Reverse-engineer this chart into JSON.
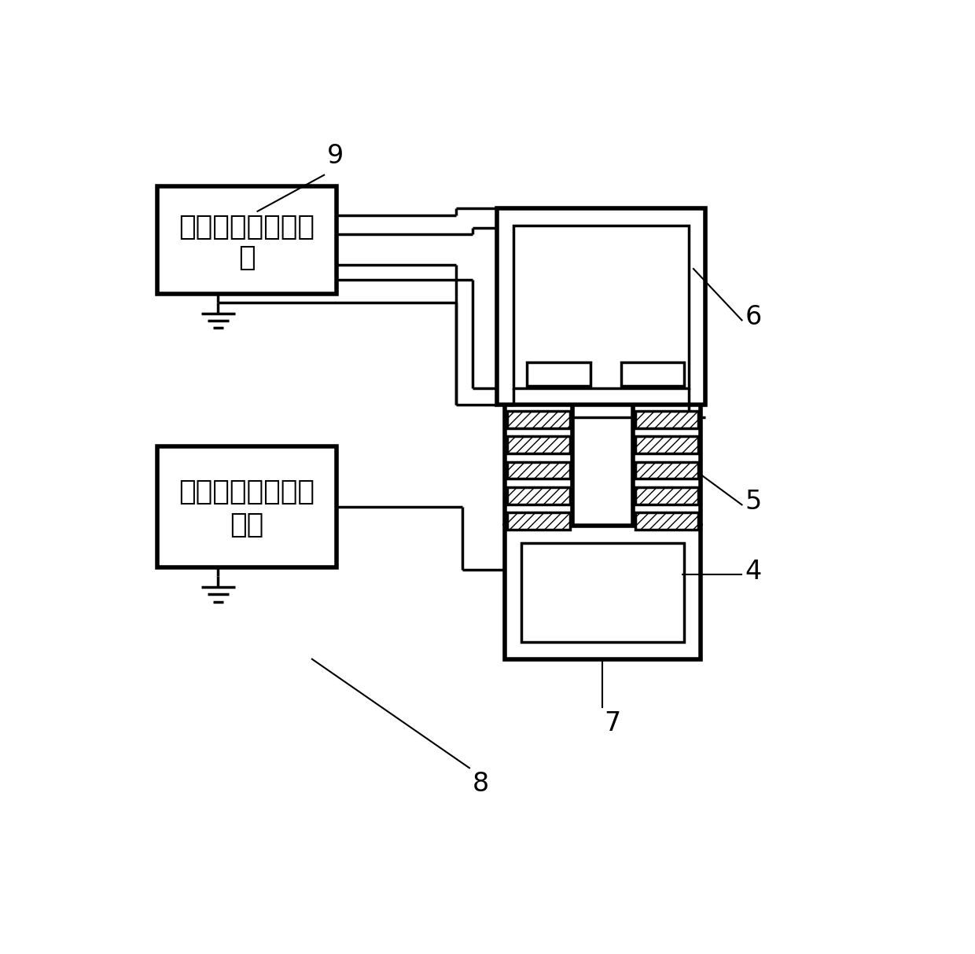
{
  "fig_width": 12.4,
  "fig_height": 12.14,
  "bg_color": "#ffffff",
  "box1_line1": "电子束后加速脉冲",
  "box1_line2": "源",
  "box2_line1": "伪火花放电纳秒脉",
  "box2_line2": "冲源",
  "label_9": "9",
  "label_8": "8",
  "label_6": "6",
  "label_5": "5",
  "label_4": "4",
  "label_7": "7",
  "font_size_chinese": 26,
  "font_size_label": 24,
  "lw_outer": 4.0,
  "lw_inner": 2.5,
  "lw_wire": 2.5
}
